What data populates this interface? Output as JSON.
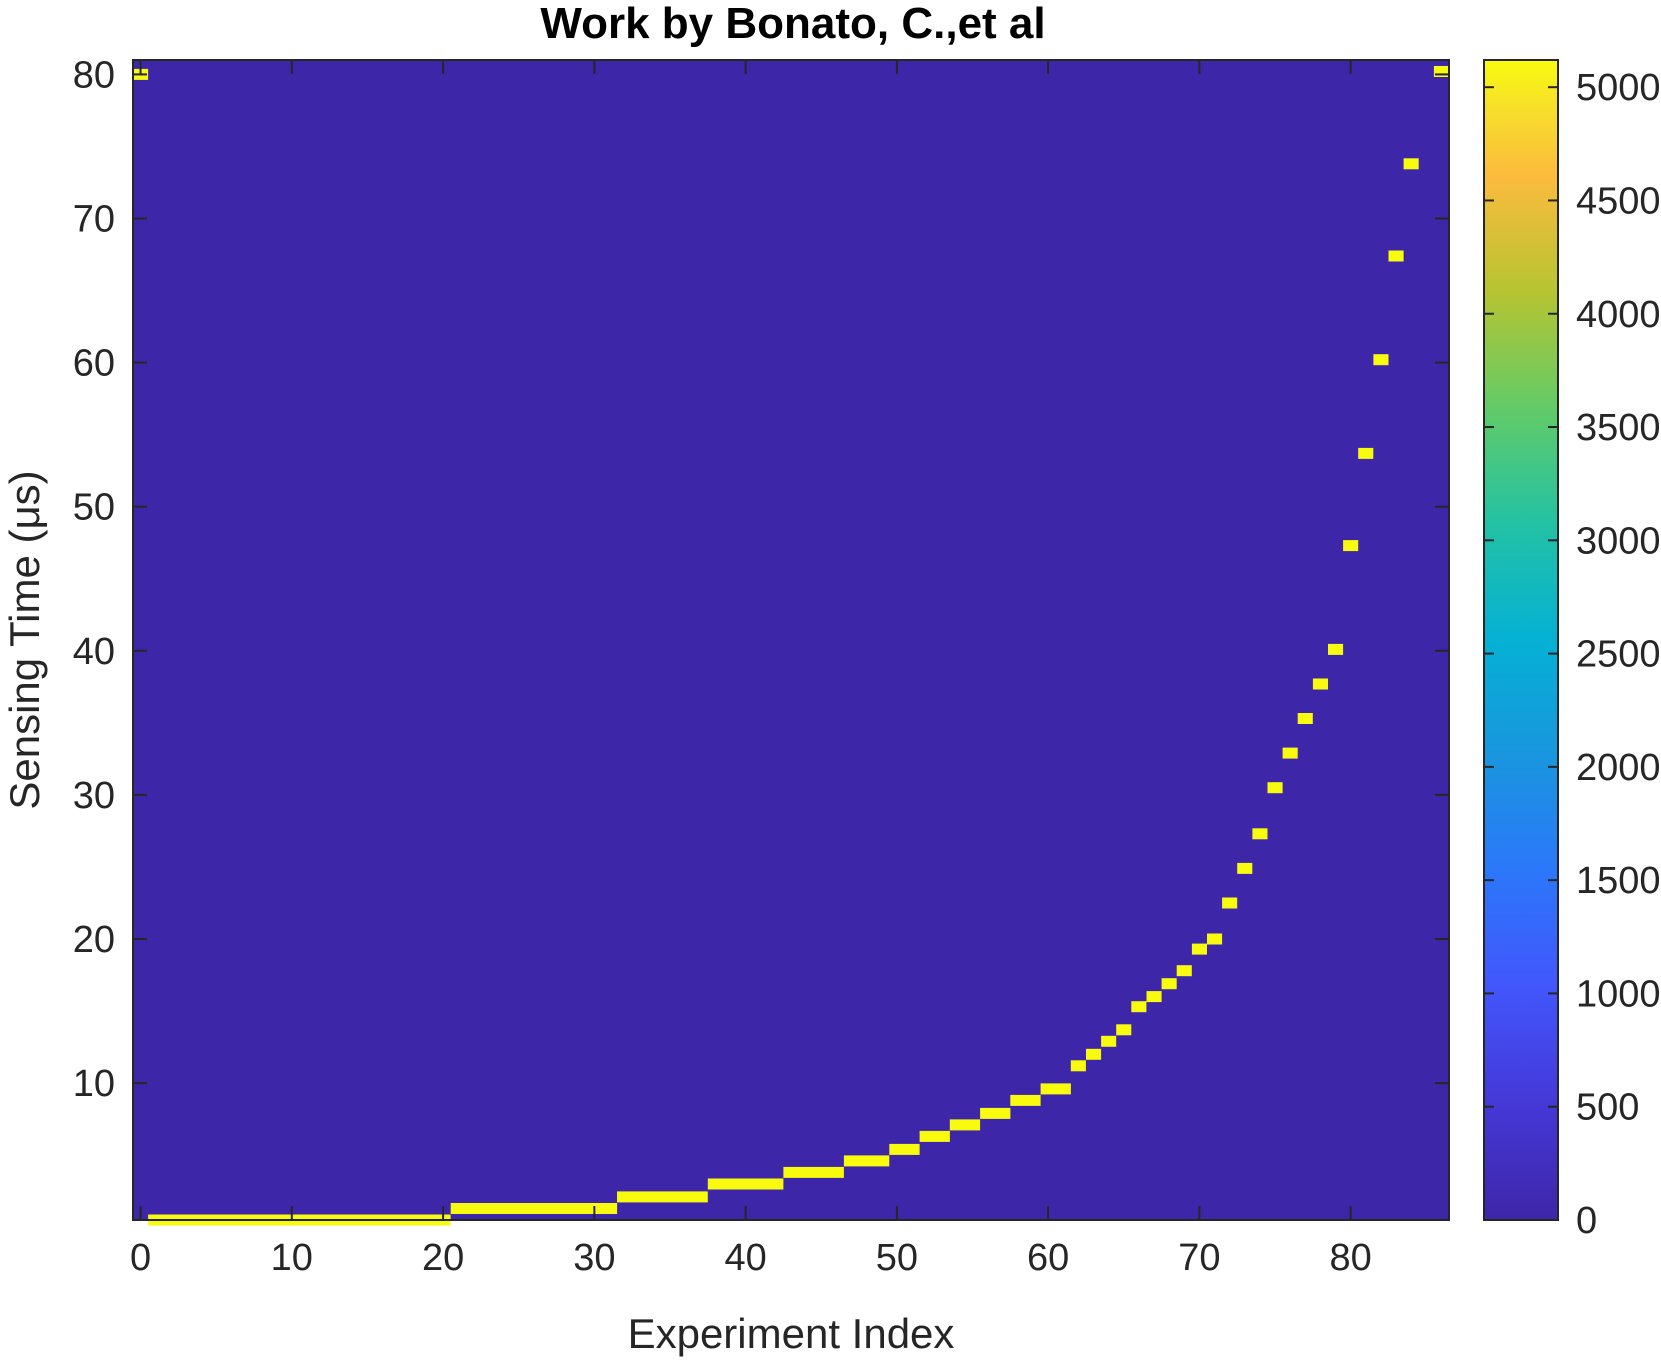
{
  "chart_data": {
    "type": "heatmap",
    "title": "Work by Bonato, C.,et al",
    "xlabel": "Experiment Index",
    "ylabel": "Sensing Time (μs)",
    "xlim": [
      -0.5,
      86.5
    ],
    "ylim": [
      0.5,
      81
    ],
    "xticks": [
      0,
      10,
      20,
      30,
      40,
      50,
      60,
      70,
      80
    ],
    "yticks": [
      10,
      20,
      30,
      40,
      50,
      60,
      70,
      80
    ],
    "colorbar": {
      "ticks": [
        0,
        500,
        1000,
        1500,
        2000,
        2500,
        3000,
        3500,
        4000,
        4500,
        5000
      ],
      "range": [
        0,
        5120
      ],
      "colormap": "parula",
      "low_color": "#3e26a8",
      "high_color": "#f9fb0e"
    },
    "background_value": 0,
    "highlight_value": 5120,
    "highlighted_cells": [
      {
        "x_start": 0,
        "x_end": 0,
        "y": 80
      },
      {
        "x_start": 1,
        "x_end": 20,
        "y": 0.5
      },
      {
        "x_start": 21,
        "x_end": 31,
        "y": 1.3
      },
      {
        "x_start": 32,
        "x_end": 37,
        "y": 2.1
      },
      {
        "x_start": 38,
        "x_end": 42,
        "y": 3
      },
      {
        "x_start": 43,
        "x_end": 46,
        "y": 3.8
      },
      {
        "x_start": 47,
        "x_end": 49,
        "y": 4.6
      },
      {
        "x_start": 50,
        "x_end": 51,
        "y": 5.4
      },
      {
        "x_start": 52,
        "x_end": 53,
        "y": 6.3
      },
      {
        "x_start": 54,
        "x_end": 55,
        "y": 7.1
      },
      {
        "x_start": 56,
        "x_end": 57,
        "y": 7.9
      },
      {
        "x_start": 58,
        "x_end": 59,
        "y": 8.8
      },
      {
        "x_start": 60,
        "x_end": 61,
        "y": 9.6
      },
      {
        "x_start": 62,
        "x_end": 62,
        "y": 11.2
      },
      {
        "x_start": 63,
        "x_end": 63,
        "y": 12
      },
      {
        "x_start": 64,
        "x_end": 64,
        "y": 12.9
      },
      {
        "x_start": 65,
        "x_end": 65,
        "y": 13.7
      },
      {
        "x_start": 66,
        "x_end": 66,
        "y": 15.3
      },
      {
        "x_start": 67,
        "x_end": 67,
        "y": 16
      },
      {
        "x_start": 68,
        "x_end": 68,
        "y": 16.9
      },
      {
        "x_start": 69,
        "x_end": 69,
        "y": 17.8
      },
      {
        "x_start": 70,
        "x_end": 70,
        "y": 19.3
      },
      {
        "x_start": 71,
        "x_end": 71,
        "y": 20
      },
      {
        "x_start": 72,
        "x_end": 72,
        "y": 22.5
      },
      {
        "x_start": 73,
        "x_end": 73,
        "y": 24.9
      },
      {
        "x_start": 74,
        "x_end": 74,
        "y": 27.3
      },
      {
        "x_start": 75,
        "x_end": 75,
        "y": 30.5
      },
      {
        "x_start": 76,
        "x_end": 76,
        "y": 32.9
      },
      {
        "x_start": 77,
        "x_end": 77,
        "y": 35.3
      },
      {
        "x_start": 78,
        "x_end": 78,
        "y": 37.7
      },
      {
        "x_start": 79,
        "x_end": 79,
        "y": 40.1
      },
      {
        "x_start": 80,
        "x_end": 80,
        "y": 47.3
      },
      {
        "x_start": 81,
        "x_end": 81,
        "y": 53.7
      },
      {
        "x_start": 82,
        "x_end": 82,
        "y": 60.2
      },
      {
        "x_start": 83,
        "x_end": 83,
        "y": 67.4
      },
      {
        "x_start": 84,
        "x_end": 84,
        "y": 73.8
      },
      {
        "x_start": 86,
        "x_end": 86,
        "y": 80.2
      }
    ]
  }
}
